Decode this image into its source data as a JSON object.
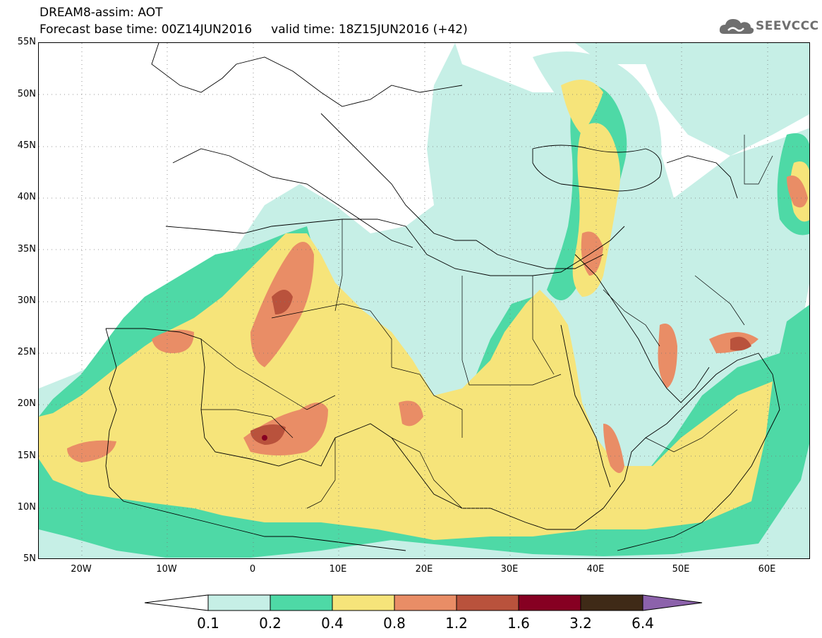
{
  "header": {
    "line1": "DREAM8-assim: AOT",
    "line2": "Forecast base time: 00Z14JUN2016     valid time: 18Z15JUN2016 (+42)"
  },
  "logo": {
    "text": "SEEVCCC",
    "icon": "cloud-icon"
  },
  "map": {
    "variable": "AOT",
    "lat_labels": [
      "55N",
      "50N",
      "45N",
      "40N",
      "35N",
      "30N",
      "25N",
      "20N",
      "15N",
      "10N",
      "5N"
    ],
    "lon_labels": [
      "20W",
      "10W",
      "0",
      "10E",
      "20E",
      "30E",
      "40E",
      "50E",
      "60E"
    ],
    "lat_range": [
      5,
      55
    ],
    "lon_range": [
      -25,
      65
    ]
  },
  "colorbar": {
    "levels": [
      "0.1",
      "0.2",
      "0.4",
      "0.8",
      "1.2",
      "1.6",
      "3.2",
      "6.4"
    ],
    "colors": [
      "#ffffff",
      "#c6efe6",
      "#4ed9a6",
      "#f6e47a",
      "#e98d66",
      "#b9523c",
      "#860022",
      "#3f2a17",
      "#8c62ab"
    ]
  }
}
